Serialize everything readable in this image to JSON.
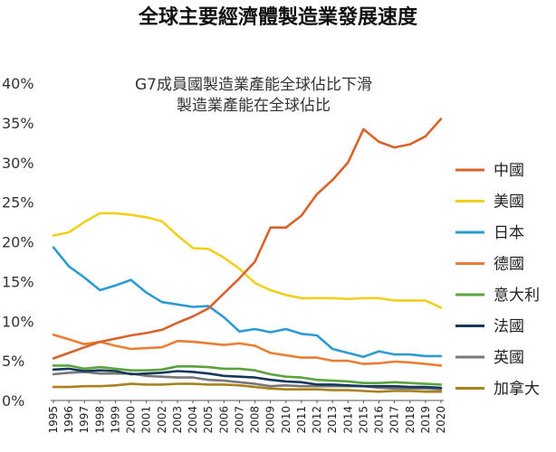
{
  "chart_data": {
    "type": "line",
    "title": "全球主要經濟體製造業發展速度",
    "subtitle_lines": [
      "G7成員國製造業產能全球佔比下滑",
      "製造業產能在全球佔比"
    ],
    "xlabel": "",
    "ylabel": "",
    "ylim": [
      0,
      40
    ],
    "y_ticks": [
      "0%",
      "5%",
      "10%",
      "15%",
      "20%",
      "25%",
      "30%",
      "35%",
      "40%"
    ],
    "x": [
      "1995",
      "1996",
      "1997",
      "1998",
      "1999",
      "2000",
      "2001",
      "2002",
      "2003",
      "2004",
      "2005",
      "2006",
      "2007",
      "2008",
      "2009",
      "2010",
      "2011",
      "2012",
      "2013",
      "2014",
      "2015",
      "2016",
      "2017",
      "2018",
      "2019",
      "2020"
    ],
    "grid": false,
    "legend_position": "right",
    "series": [
      {
        "name": "中國",
        "color": "#d9622b",
        "values": [
          5.3,
          6.0,
          6.7,
          7.4,
          7.8,
          8.2,
          8.5,
          8.9,
          9.8,
          10.6,
          11.6,
          13.5,
          15.4,
          17.5,
          21.8,
          21.8,
          23.3,
          26.0,
          27.8,
          30.0,
          34.2,
          32.6,
          31.9,
          32.3,
          33.3,
          35.5
        ]
      },
      {
        "name": "美國",
        "color": "#f2cf1d",
        "values": [
          20.8,
          21.2,
          22.5,
          23.6,
          23.6,
          23.4,
          23.1,
          22.6,
          20.8,
          19.2,
          19.1,
          18.0,
          16.6,
          14.8,
          13.9,
          13.3,
          12.9,
          12.9,
          12.9,
          12.8,
          12.9,
          12.9,
          12.6,
          12.6,
          12.6,
          11.7
        ]
      },
      {
        "name": "日本",
        "color": "#2c9bd1",
        "values": [
          19.3,
          16.9,
          15.5,
          13.9,
          14.5,
          15.2,
          13.6,
          12.4,
          12.1,
          11.8,
          11.9,
          10.5,
          8.7,
          9.0,
          8.6,
          9.0,
          8.4,
          8.2,
          6.5,
          6.0,
          5.5,
          6.2,
          5.8,
          5.8,
          5.6,
          5.6
        ]
      },
      {
        "name": "德國",
        "color": "#ea7e33",
        "values": [
          8.3,
          7.7,
          7.1,
          7.4,
          6.9,
          6.5,
          6.6,
          6.7,
          7.5,
          7.4,
          7.2,
          7.0,
          7.2,
          6.9,
          6.0,
          5.7,
          5.4,
          5.4,
          5.0,
          5.0,
          4.6,
          4.7,
          4.9,
          4.8,
          4.6,
          4.4
        ]
      },
      {
        "name": "意大利",
        "color": "#5aa33d",
        "values": [
          4.4,
          4.4,
          4.0,
          4.2,
          4.0,
          3.8,
          3.8,
          3.9,
          4.3,
          4.3,
          4.2,
          4.0,
          4.0,
          3.8,
          3.3,
          3.0,
          2.9,
          2.6,
          2.5,
          2.4,
          2.2,
          2.2,
          2.3,
          2.2,
          2.1,
          2.0
        ]
      },
      {
        "name": "法國",
        "color": "#16375c",
        "values": [
          3.9,
          4.0,
          3.7,
          3.8,
          3.7,
          3.3,
          3.4,
          3.5,
          3.7,
          3.6,
          3.4,
          3.1,
          3.0,
          2.9,
          2.6,
          2.4,
          2.3,
          2.0,
          2.0,
          1.9,
          1.8,
          1.8,
          1.8,
          1.7,
          1.7,
          1.6
        ]
      },
      {
        "name": "英國",
        "color": "#777777",
        "values": [
          3.3,
          3.5,
          3.6,
          3.4,
          3.4,
          3.4,
          3.1,
          3.0,
          2.9,
          2.9,
          2.6,
          2.5,
          2.3,
          2.1,
          1.8,
          1.9,
          1.8,
          1.8,
          1.8,
          1.8,
          1.8,
          1.6,
          1.5,
          1.5,
          1.5,
          1.4
        ]
      },
      {
        "name": "加拿大",
        "color": "#a7821e",
        "values": [
          1.7,
          1.7,
          1.8,
          1.8,
          1.9,
          2.1,
          2.0,
          2.0,
          2.1,
          2.1,
          2.0,
          2.0,
          1.9,
          1.7,
          1.5,
          1.4,
          1.4,
          1.4,
          1.3,
          1.3,
          1.2,
          1.1,
          1.2,
          1.2,
          1.1,
          1.1
        ]
      }
    ]
  }
}
